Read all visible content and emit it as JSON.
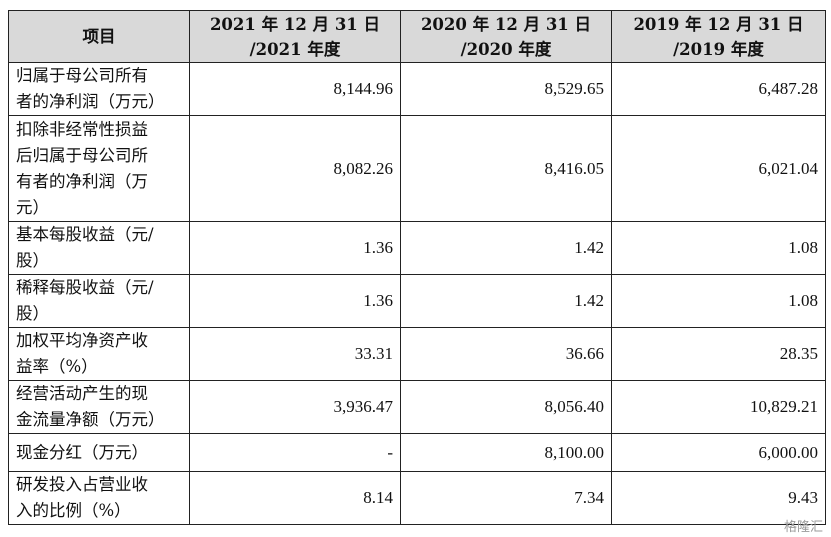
{
  "table": {
    "headers": [
      "项目",
      "2021年12月31日\n/2021年度",
      "2020年12月31日\n/2020年度",
      "2019年12月31日\n/2019年度"
    ],
    "header_lines": [
      [
        "项目"
      ],
      [
        "2021 年 12 月 31 日",
        "/2021 年度"
      ],
      [
        "2020 年 12 月 31 日",
        "/2020 年度"
      ],
      [
        "2019 年 12 月 31 日",
        "/2019 年度"
      ]
    ],
    "rows": [
      {
        "label_lines": [
          "归属于母公司所有",
          "者的净利润（万元）"
        ],
        "values": [
          "8,144.96",
          "8,529.65",
          "6,487.28"
        ]
      },
      {
        "label_lines": [
          "扣除非经常性损益",
          "后归属于母公司所",
          "有者的净利润（万",
          "元）"
        ],
        "values": [
          "8,082.26",
          "8,416.05",
          "6,021.04"
        ]
      },
      {
        "label_lines": [
          "基本每股收益（元/",
          "股）"
        ],
        "values": [
          "1.36",
          "1.42",
          "1.08"
        ]
      },
      {
        "label_lines": [
          "稀释每股收益（元/",
          "股）"
        ],
        "values": [
          "1.36",
          "1.42",
          "1.08"
        ]
      },
      {
        "label_lines": [
          "加权平均净资产收",
          "益率（%）"
        ],
        "values": [
          "33.31",
          "36.66",
          "28.35"
        ]
      },
      {
        "label_lines": [
          "经营活动产生的现",
          "金流量净额（万元）"
        ],
        "values": [
          "3,936.47",
          "8,056.40",
          "10,829.21"
        ]
      },
      {
        "label_lines": [
          "现金分红（万元）"
        ],
        "values": [
          "-",
          "8,100.00",
          "6,000.00"
        ]
      },
      {
        "label_lines": [
          "研发投入占营业收",
          "入的比例（%）"
        ],
        "values": [
          "8.14",
          "7.34",
          "9.43"
        ]
      }
    ]
  },
  "watermark": "格隆汇"
}
